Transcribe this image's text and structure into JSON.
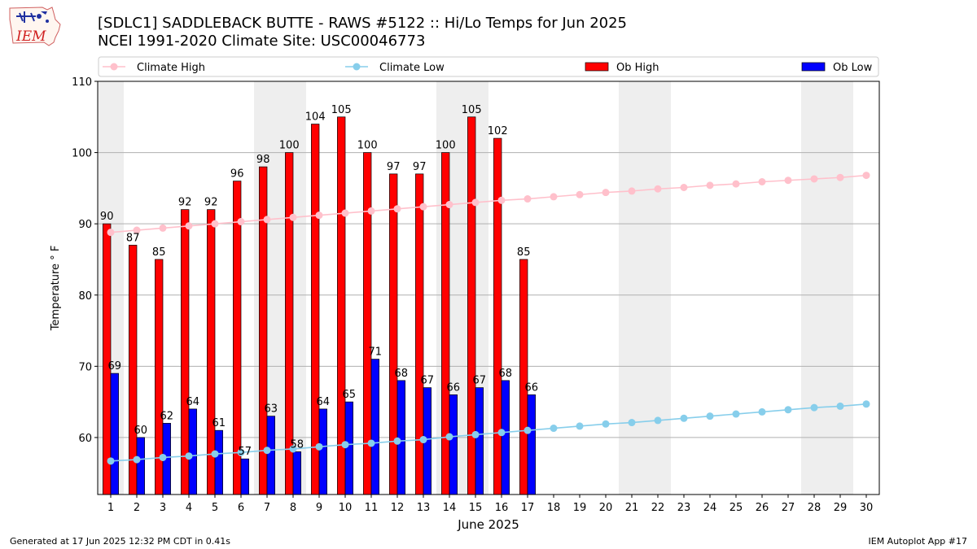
{
  "header": {
    "title_line1": "[SDLC1] SADDLEBACK BUTTE - RAWS #5122 :: Hi/Lo Temps for Jun 2025",
    "title_line2": "NCEI 1991-2020 Climate Site: USC00046773",
    "logo_text": "IEM"
  },
  "footer": {
    "left": "Generated at 17 Jun 2025 12:32 PM CDT in 0.41s",
    "right": "IEM Autoplot App #17"
  },
  "colors": {
    "ob_high": "#ff0000",
    "ob_low": "#0000ff",
    "climate_high": "#ffc0cb",
    "climate_low": "#87ceeb",
    "weekend_shade": "#eeeeee",
    "grid": "#b0b0b0"
  },
  "chart_data": {
    "type": "bar",
    "xlabel": "June 2025",
    "ylabel": "Temperature ° F",
    "ylim": [
      52,
      110
    ],
    "yticks": [
      60,
      70,
      80,
      90,
      100,
      110
    ],
    "grid": true,
    "legend_position": "top",
    "days": [
      1,
      2,
      3,
      4,
      5,
      6,
      7,
      8,
      9,
      10,
      11,
      12,
      13,
      14,
      15,
      16,
      17,
      18,
      19,
      20,
      21,
      22,
      23,
      24,
      25,
      26,
      27,
      28,
      29,
      30
    ],
    "weekend_spans": [
      [
        0.5,
        1.5
      ],
      [
        6.5,
        8.5
      ],
      [
        13.5,
        15.5
      ],
      [
        20.5,
        22.5
      ],
      [
        27.5,
        29.5
      ]
    ],
    "series": [
      {
        "name": "Climate High",
        "type": "line",
        "values": [
          88.8,
          89.1,
          89.4,
          89.7,
          90.0,
          90.3,
          90.6,
          90.9,
          91.2,
          91.5,
          91.8,
          92.1,
          92.4,
          92.7,
          93.0,
          93.3,
          93.5,
          93.8,
          94.1,
          94.4,
          94.6,
          94.9,
          95.1,
          95.4,
          95.6,
          95.9,
          96.1,
          96.3,
          96.5,
          96.8
        ]
      },
      {
        "name": "Climate Low",
        "type": "line",
        "values": [
          56.7,
          56.9,
          57.2,
          57.4,
          57.7,
          57.9,
          58.2,
          58.4,
          58.7,
          59.0,
          59.2,
          59.5,
          59.7,
          60.1,
          60.4,
          60.7,
          61.0,
          61.3,
          61.6,
          61.9,
          62.1,
          62.4,
          62.7,
          63.0,
          63.3,
          63.6,
          63.9,
          64.2,
          64.4,
          64.7
        ]
      },
      {
        "name": "Ob High",
        "type": "bar",
        "values": [
          90,
          87,
          85,
          92,
          92,
          96,
          98,
          100,
          104,
          105,
          100,
          97,
          97,
          100,
          105,
          102,
          85
        ]
      },
      {
        "name": "Ob Low",
        "type": "bar",
        "values": [
          69,
          60,
          62,
          64,
          61,
          57,
          63,
          58,
          64,
          65,
          71,
          68,
          67,
          66,
          67,
          68,
          66
        ]
      }
    ]
  }
}
